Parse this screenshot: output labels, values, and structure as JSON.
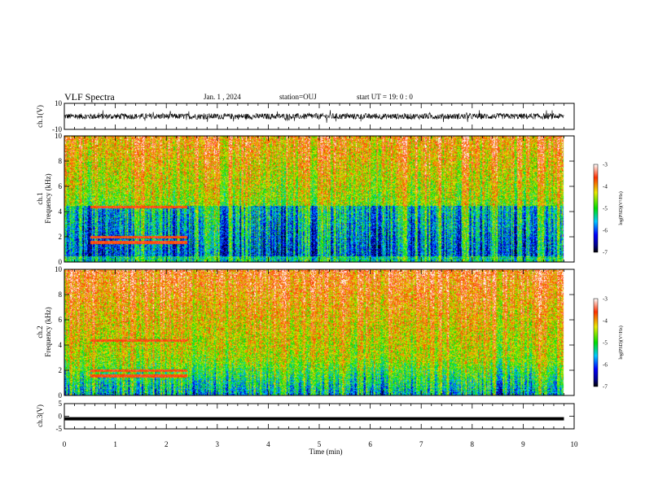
{
  "header": {
    "title": "VLF Spectra",
    "date": "Jan. 1 , 2024",
    "station": "station=OUJ",
    "start": "start UT =  19: 0 : 0"
  },
  "chart_data": [
    {
      "type": "line",
      "id": "ch1-waveform",
      "ylabel": "ch.1(V)",
      "ylim": [
        -10,
        10
      ],
      "yticks": [
        "10",
        "-10"
      ],
      "xlim": [
        0,
        10
      ],
      "description_of_series": "noise waveform centered near 0 with amplitude about ±3 V, ending near 9.8 min"
    },
    {
      "type": "heatmap",
      "id": "ch1-spectrogram",
      "ylabel": "ch.1\nFrequency (kHz)",
      "ylim": [
        0,
        10
      ],
      "yticks": [
        "0",
        "2",
        "4",
        "6",
        "8",
        "10"
      ],
      "xlim": [
        0,
        10
      ],
      "data_end_min": 9.8,
      "colorbar": {
        "label": "log(PSD)(V²/Hz)",
        "range": [
          -7,
          -3
        ],
        "ticks": [
          "-3",
          "-4",
          "-5",
          "-6",
          "-7"
        ]
      }
    },
    {
      "type": "heatmap",
      "id": "ch2-spectrogram",
      "ylabel": "ch.2\nFrequency (kHz)",
      "ylim": [
        0,
        10
      ],
      "yticks": [
        "0",
        "2",
        "4",
        "6",
        "8",
        "10"
      ],
      "xlim": [
        0,
        10
      ],
      "data_end_min": 9.8,
      "colorbar": {
        "label": "log(PSD)(V²/Hz)",
        "range": [
          -7,
          -3
        ],
        "ticks": [
          "-3",
          "-4",
          "-5",
          "-6",
          "-7"
        ]
      }
    },
    {
      "type": "line",
      "id": "ch3-waveform",
      "ylabel": "ch.3(V)",
      "ylim": [
        -5,
        5
      ],
      "yticks": [
        "5",
        "0",
        "-5"
      ],
      "xlim": [
        0,
        10
      ],
      "constant_value": -1
    }
  ],
  "xaxis": {
    "label": "Time (min)",
    "ticks": [
      "0",
      "1",
      "2",
      "3",
      "4",
      "5",
      "6",
      "7",
      "8",
      "9",
      "10"
    ]
  }
}
